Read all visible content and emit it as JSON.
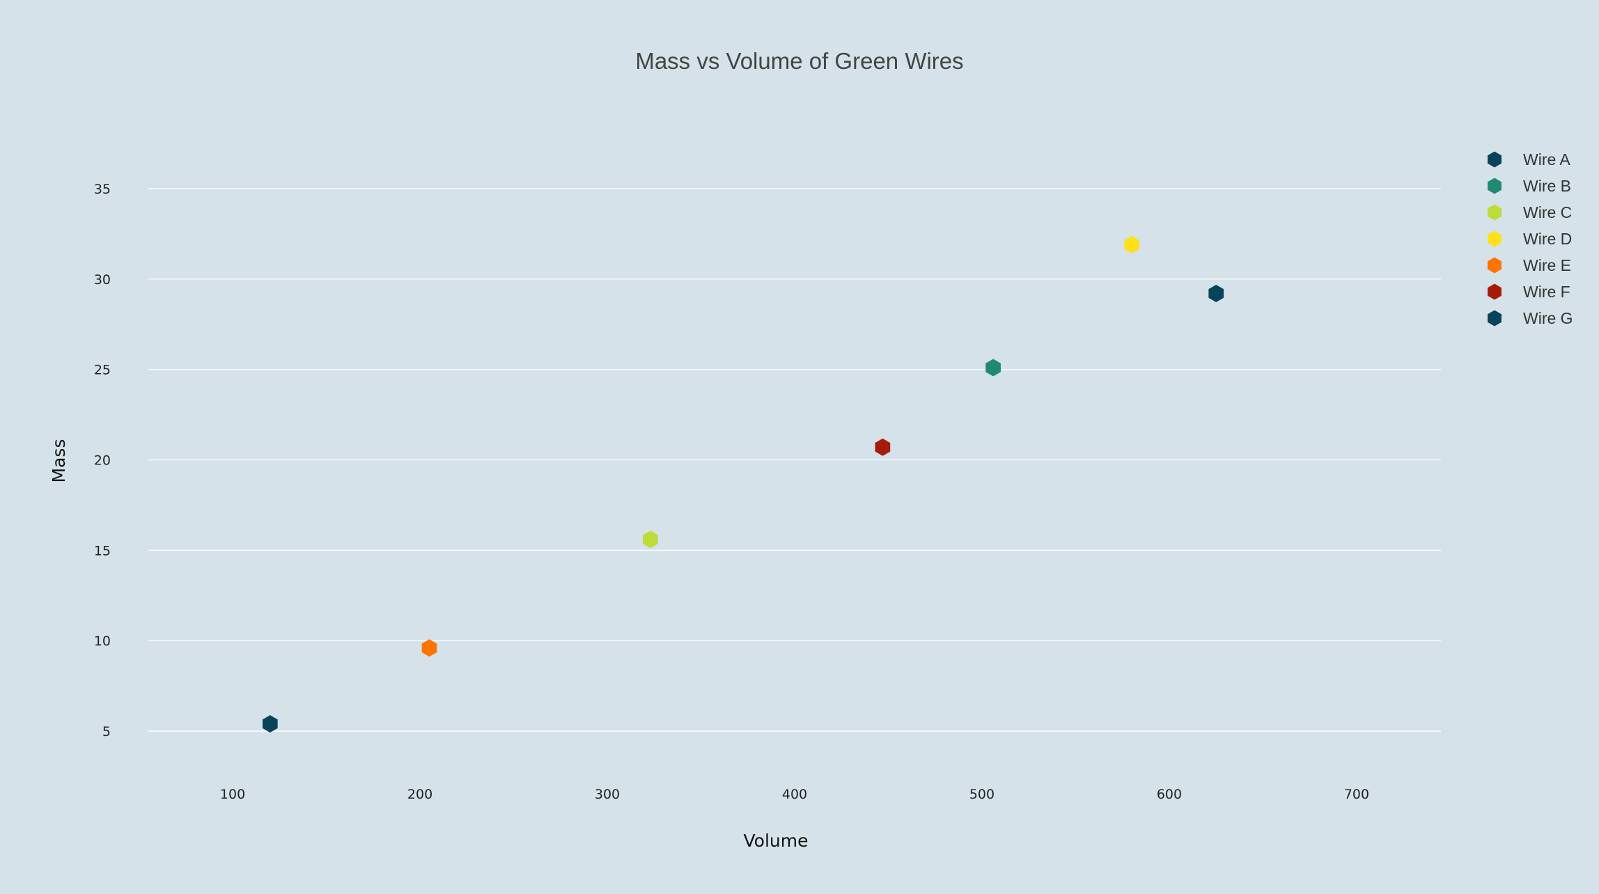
{
  "chart_data": {
    "type": "scatter",
    "title": "Mass vs Volume of Green Wires",
    "xlabel": "Volume",
    "ylabel": "Mass",
    "xlim": [
      55,
      745
    ],
    "ylim": [
      2.5,
      38.5
    ],
    "xticks": [
      100,
      200,
      300,
      400,
      500,
      600,
      700
    ],
    "yticks": [
      5,
      10,
      15,
      20,
      25,
      30,
      35
    ],
    "grid": {
      "x": false,
      "y": true
    },
    "legend_position": "right",
    "marker": "hexagon",
    "series": [
      {
        "name": "Wire A",
        "color": "#08435a",
        "x": [
          120
        ],
        "y": [
          5.4
        ]
      },
      {
        "name": "Wire B",
        "color": "#1f8a70",
        "x": [
          506
        ],
        "y": [
          25.1
        ]
      },
      {
        "name": "Wire C",
        "color": "#bedb39",
        "x": [
          323
        ],
        "y": [
          15.6
        ]
      },
      {
        "name": "Wire D",
        "color": "#ffe11a",
        "x": [
          580
        ],
        "y": [
          31.9
        ]
      },
      {
        "name": "Wire E",
        "color": "#fd7400",
        "x": [
          205
        ],
        "y": [
          9.6
        ]
      },
      {
        "name": "Wire F",
        "color": "#a51b0b",
        "x": [
          447
        ],
        "y": [
          20.7
        ]
      },
      {
        "name": "Wire G",
        "color": "#08435a",
        "x": [
          625
        ],
        "y": [
          29.2
        ]
      }
    ]
  }
}
